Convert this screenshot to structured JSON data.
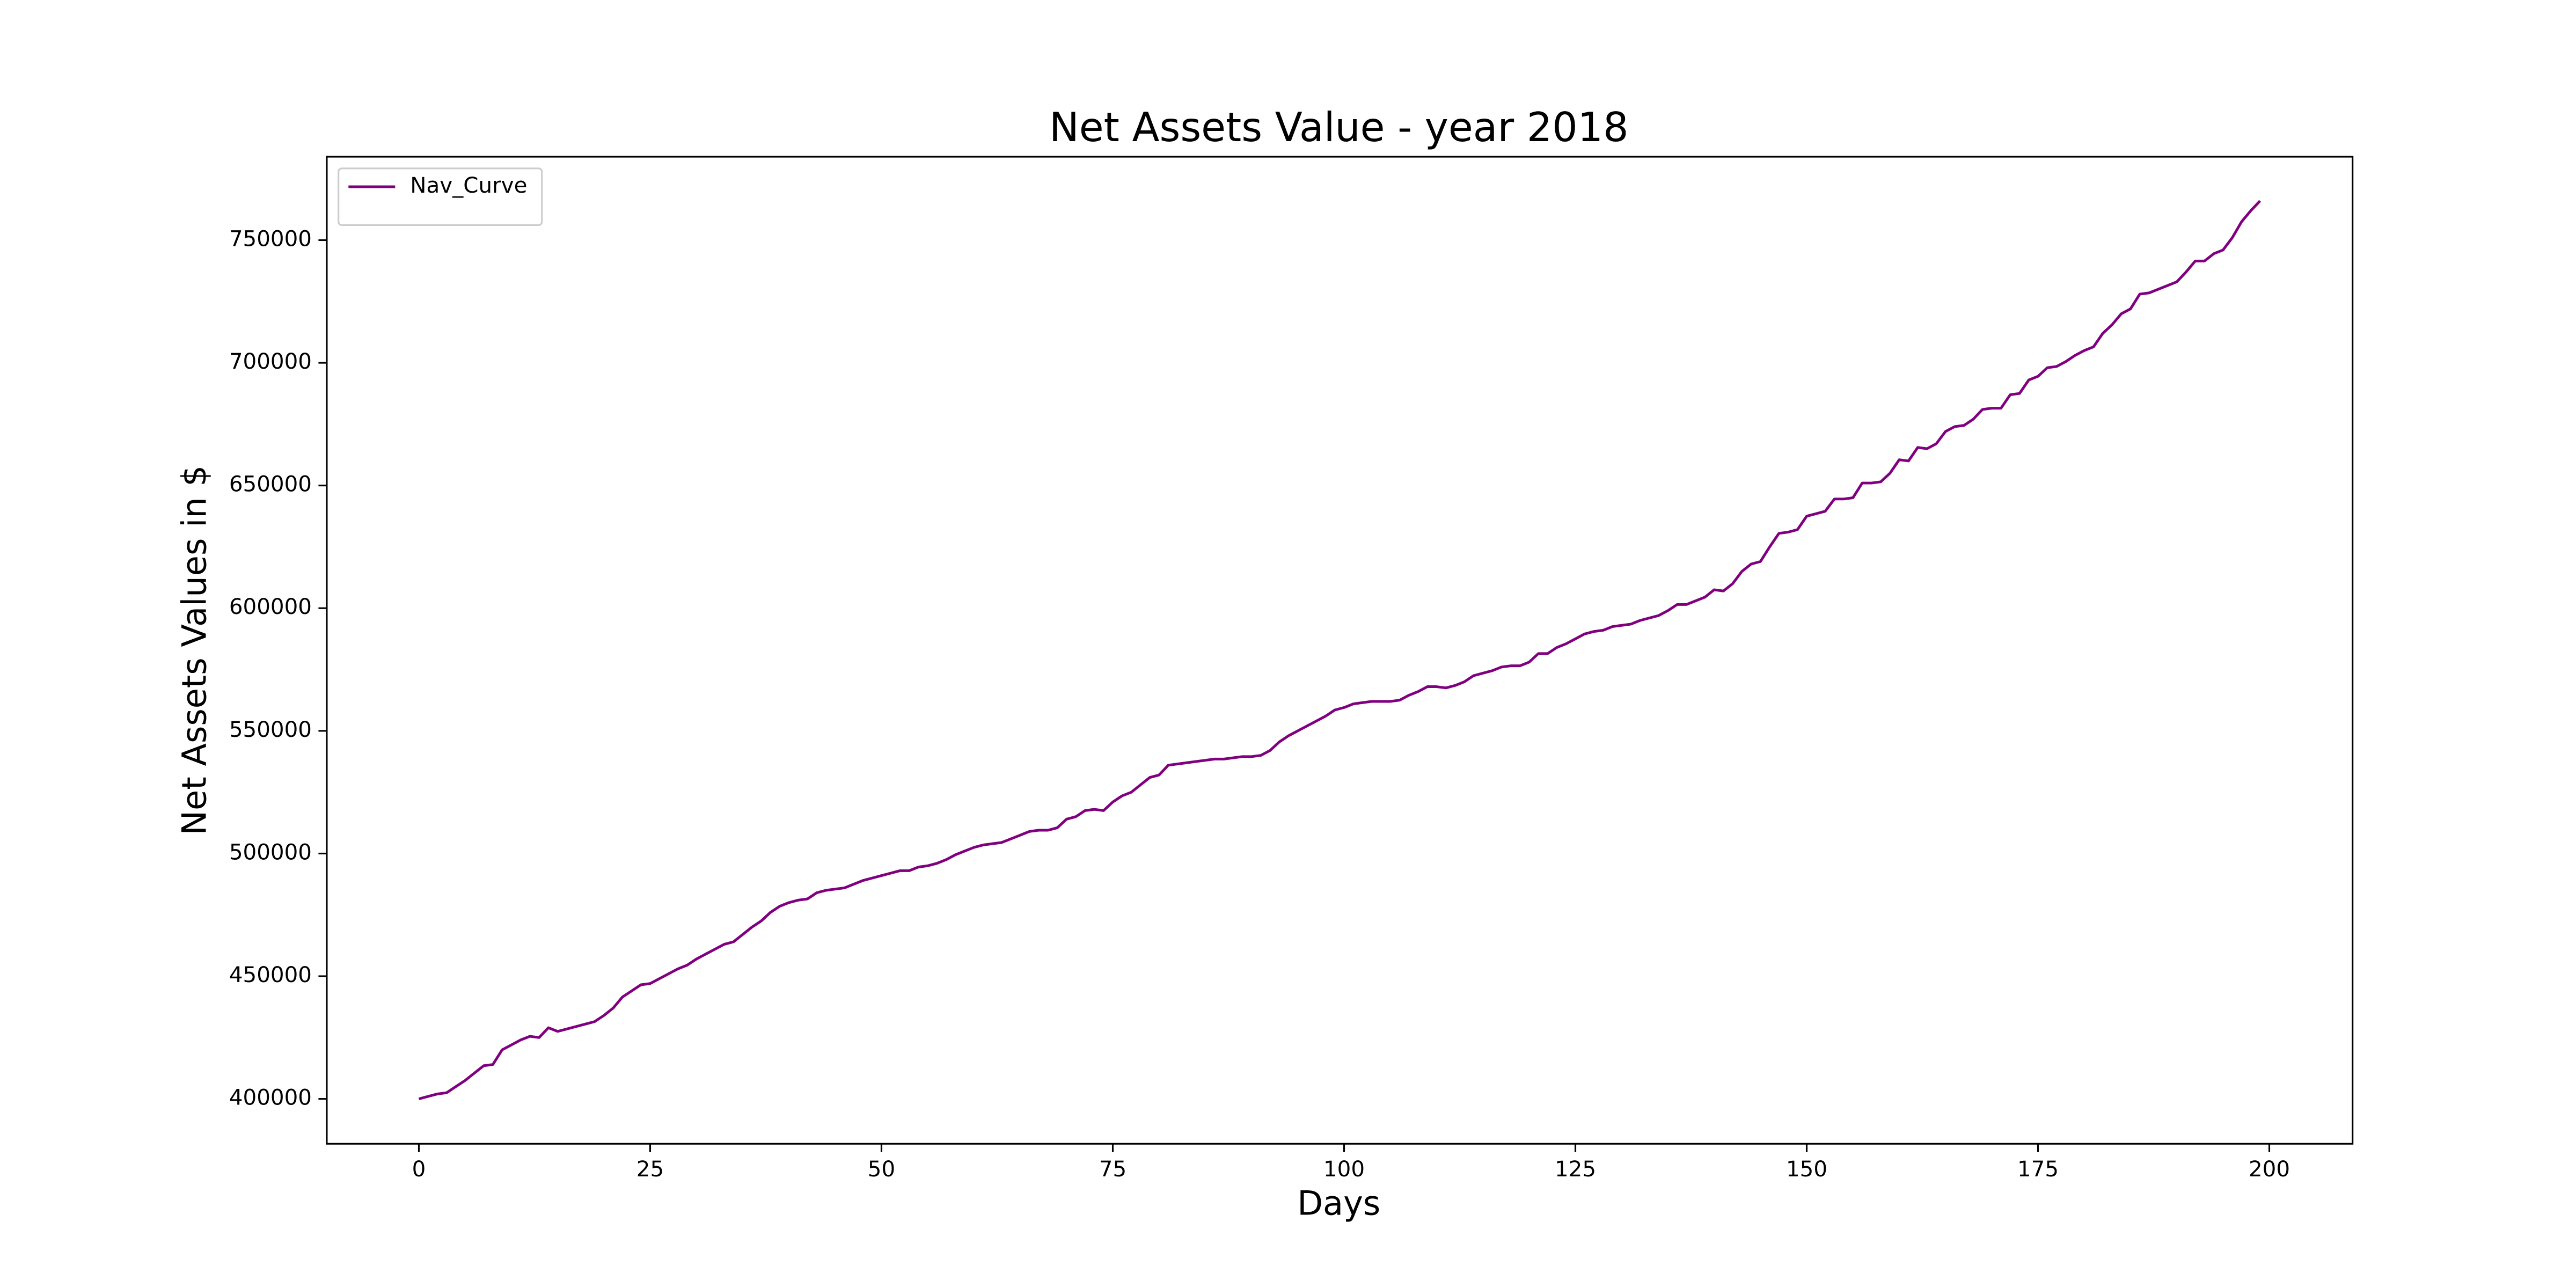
{
  "chart_data": {
    "type": "line",
    "title": "Net Assets Value - year 2018",
    "xlabel": "Days",
    "ylabel": "Net  Assets Values in $",
    "x": [
      0,
      1,
      2,
      3,
      4,
      5,
      6,
      7,
      8,
      9,
      10,
      11,
      12,
      13,
      14,
      15,
      16,
      17,
      18,
      19,
      20,
      21,
      22,
      23,
      24,
      25,
      26,
      27,
      28,
      29,
      30,
      31,
      32,
      33,
      34,
      35,
      36,
      37,
      38,
      39,
      40,
      41,
      42,
      43,
      44,
      45,
      46,
      47,
      48,
      49,
      50,
      51,
      52,
      53,
      54,
      55,
      56,
      57,
      58,
      59,
      60,
      61,
      62,
      63,
      64,
      65,
      66,
      67,
      68,
      69,
      70,
      71,
      72,
      73,
      74,
      75,
      76,
      77,
      78,
      79,
      80,
      81,
      82,
      83,
      84,
      85,
      86,
      87,
      88,
      89,
      90,
      91,
      92,
      93,
      94,
      95,
      96,
      97,
      98,
      99,
      100,
      101,
      102,
      103,
      104,
      105,
      106,
      107,
      108,
      109,
      110,
      111,
      112,
      113,
      114,
      115,
      116,
      117,
      118,
      119,
      120,
      121,
      122,
      123,
      124,
      125,
      126,
      127,
      128,
      129,
      130,
      131,
      132,
      133,
      134,
      135,
      136,
      137,
      138,
      139,
      140,
      141,
      142,
      143,
      144,
      145,
      146,
      147,
      148,
      149,
      150,
      151,
      152,
      153,
      154,
      155,
      156,
      157,
      158,
      159,
      160,
      161,
      162,
      163,
      164,
      165,
      166,
      167,
      168,
      169,
      170,
      171,
      172,
      173,
      174,
      175,
      176,
      177,
      178,
      179,
      180,
      181,
      182,
      183,
      184,
      185,
      186,
      187,
      188,
      189,
      190,
      191,
      192,
      193,
      194,
      195,
      196,
      197,
      198,
      199
    ],
    "series": [
      {
        "name": "Nav_Curve",
        "color": "#800080",
        "values": [
          400000,
          401000,
          402000,
          402500,
          405000,
          407500,
          410500,
          413500,
          414000,
          420000,
          422000,
          424000,
          425500,
          425000,
          429000,
          427500,
          428500,
          429500,
          430500,
          431500,
          434000,
          437000,
          441500,
          444000,
          446500,
          447000,
          449000,
          451000,
          453000,
          454500,
          457000,
          459000,
          461000,
          463000,
          464000,
          467000,
          470000,
          472500,
          476000,
          478500,
          480000,
          481000,
          481500,
          484000,
          485000,
          485500,
          486000,
          487500,
          489000,
          490000,
          491000,
          492000,
          493000,
          493000,
          494500,
          495000,
          496000,
          497500,
          499500,
          501000,
          502500,
          503500,
          504000,
          504500,
          506000,
          507500,
          509000,
          509500,
          509500,
          510500,
          514000,
          515000,
          517500,
          518000,
          517500,
          521000,
          523500,
          525000,
          528000,
          531000,
          532000,
          536000,
          536500,
          537000,
          537500,
          538000,
          538500,
          538500,
          539000,
          539500,
          539500,
          540000,
          542000,
          545500,
          548000,
          550000,
          552000,
          554000,
          556000,
          558500,
          559500,
          561000,
          561500,
          562000,
          562000,
          562000,
          562500,
          564500,
          566000,
          568000,
          568000,
          567500,
          568500,
          570000,
          572500,
          573500,
          574500,
          576000,
          576500,
          576500,
          578000,
          581500,
          581500,
          584000,
          585500,
          587500,
          589500,
          590500,
          591000,
          592500,
          593000,
          593500,
          595000,
          596000,
          597000,
          599000,
          601500,
          601500,
          603000,
          604500,
          607500,
          607000,
          610000,
          615000,
          618000,
          619000,
          625000,
          630500,
          631000,
          632000,
          637500,
          638500,
          639500,
          644500,
          644500,
          645000,
          651000,
          651000,
          651500,
          655000,
          660500,
          660000,
          665500,
          665000,
          667000,
          672000,
          674000,
          674500,
          677000,
          681000,
          681500,
          681500,
          687000,
          687500,
          693000,
          694500,
          698000,
          698500,
          700500,
          703000,
          705000,
          706500,
          712000,
          715500,
          720000,
          722000,
          728000,
          728500,
          730000,
          731500,
          733000,
          737000,
          741500,
          741500,
          744500,
          746000,
          751000,
          757500,
          762000,
          766000
        ]
      }
    ],
    "xlim": [
      -9.95,
      209
    ],
    "xticks": [
      0,
      25,
      50,
      75,
      100,
      125,
      150,
      175,
      200
    ],
    "ylim": [
      381700,
      784000
    ],
    "yticks": [
      400000,
      450000,
      500000,
      550000,
      600000,
      650000,
      700000,
      750000
    ],
    "legend": "upper left",
    "grid": false
  }
}
